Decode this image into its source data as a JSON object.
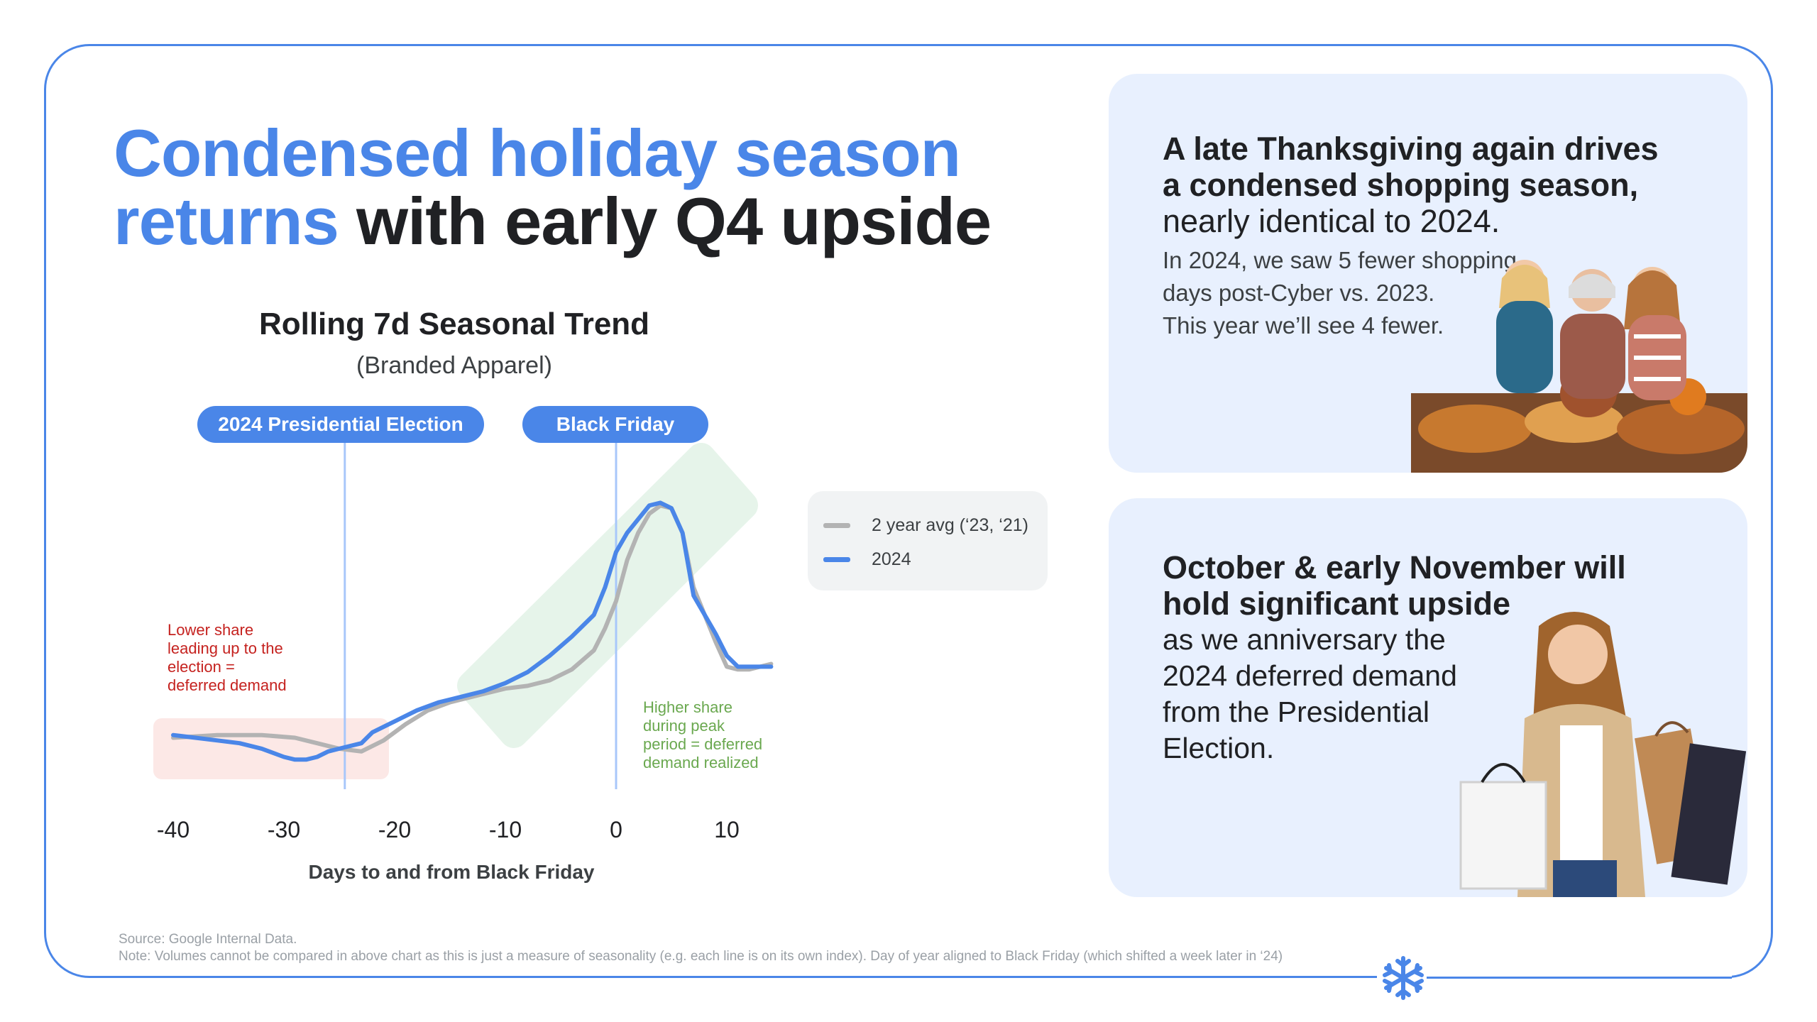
{
  "headline": {
    "part1": "Condensed holiday season",
    "part2": "returns",
    "part3": "with early Q4 upside"
  },
  "chart_data": {
    "type": "line",
    "title": "Rolling 7d Seasonal Trend",
    "subtitle": "(Branded Apparel)",
    "xlabel": "Days to and from Black Friday",
    "ylabel": "",
    "xlim": [
      -42,
      14
    ],
    "ylim": [
      0,
      100
    ],
    "x_ticks": [
      -40,
      -30,
      -20,
      -10,
      0,
      10
    ],
    "x_tick_labels": [
      "-40",
      "-30",
      "-20",
      "-10",
      "0",
      "10"
    ],
    "series": [
      {
        "name": "2 year avg (‘23, ‘21)",
        "color": "#b3b3b3",
        "x": [
          -40,
          -36,
          -32,
          -29,
          -27,
          -25,
          -23,
          -21,
          -19,
          -17,
          -15,
          -12,
          -10,
          -8,
          -6,
          -4,
          -2,
          -1,
          0,
          1,
          2,
          3,
          4,
          5,
          6,
          7,
          8,
          9,
          10,
          11,
          12,
          14
        ],
        "y": [
          10,
          11,
          11,
          10,
          8,
          6,
          5,
          9,
          15,
          20,
          23,
          26,
          28,
          29,
          31,
          35,
          42,
          50,
          60,
          75,
          85,
          92,
          95,
          94,
          85,
          65,
          55,
          45,
          36,
          35,
          35,
          37
        ]
      },
      {
        "name": "2024",
        "color": "#4a86e8",
        "x": [
          -40,
          -38,
          -36,
          -34,
          -32,
          -30,
          -29,
          -28,
          -27,
          -26,
          -25,
          -24,
          -23,
          -22,
          -20,
          -18,
          -16,
          -14,
          -12,
          -10,
          -8,
          -6,
          -4,
          -2,
          -1,
          0,
          1,
          2,
          3,
          4,
          5,
          6,
          7,
          8,
          9,
          10,
          11,
          12,
          14
        ],
        "y": [
          11,
          10,
          9,
          8,
          6,
          3,
          2,
          2,
          3,
          5,
          6,
          7,
          8,
          12,
          16,
          20,
          23,
          25,
          27,
          30,
          34,
          40,
          47,
          55,
          65,
          78,
          85,
          90,
          95,
          96,
          94,
          85,
          62,
          55,
          48,
          40,
          36,
          36,
          36
        ]
      }
    ],
    "annotations": {
      "election_label": "2024 Presidential Election",
      "election_x": -24.5,
      "black_friday_label": "Black Friday",
      "black_friday_x": 0,
      "lower_share_text": [
        "Lower share",
        "leading up to the",
        "election =",
        "deferred demand"
      ],
      "higher_share_text": [
        "Higher share",
        "during peak",
        "period = deferred",
        "demand realized"
      ]
    }
  },
  "legend": {
    "items": [
      "2 year avg (‘23, ‘21)",
      "2024"
    ]
  },
  "card1": {
    "heading_bold_1": "A late Thanksgiving again drives",
    "heading_bold_2": "a condensed shopping season,",
    "heading_normal": "nearly identical to 2024.",
    "body_1": "In 2024, we saw 5 fewer shopping",
    "body_2": "days post-Cyber vs. 2023.",
    "body_3": "This year we’ll see 4 fewer."
  },
  "card2": {
    "heading_bold_1": "October & early November will",
    "heading_bold_2": "hold significant upside",
    "body_1": "as we anniversary the",
    "body_2": "2024 deferred demand",
    "body_3": "from the Presidential",
    "body_4": "Election."
  },
  "footnote": {
    "source": "Source: Google Internal Data.",
    "note": "Note: Volumes cannot be compared in above chart as this is just a measure of seasonality (e.g. each line is on its own index). Day of year aligned to Black Friday (which shifted a week later in ‘24)"
  },
  "colors": {
    "accent": "#4a86e8",
    "dark_text": "#202124",
    "red_annotation": "#c5221f",
    "green_annotation": "#6aa84f"
  }
}
